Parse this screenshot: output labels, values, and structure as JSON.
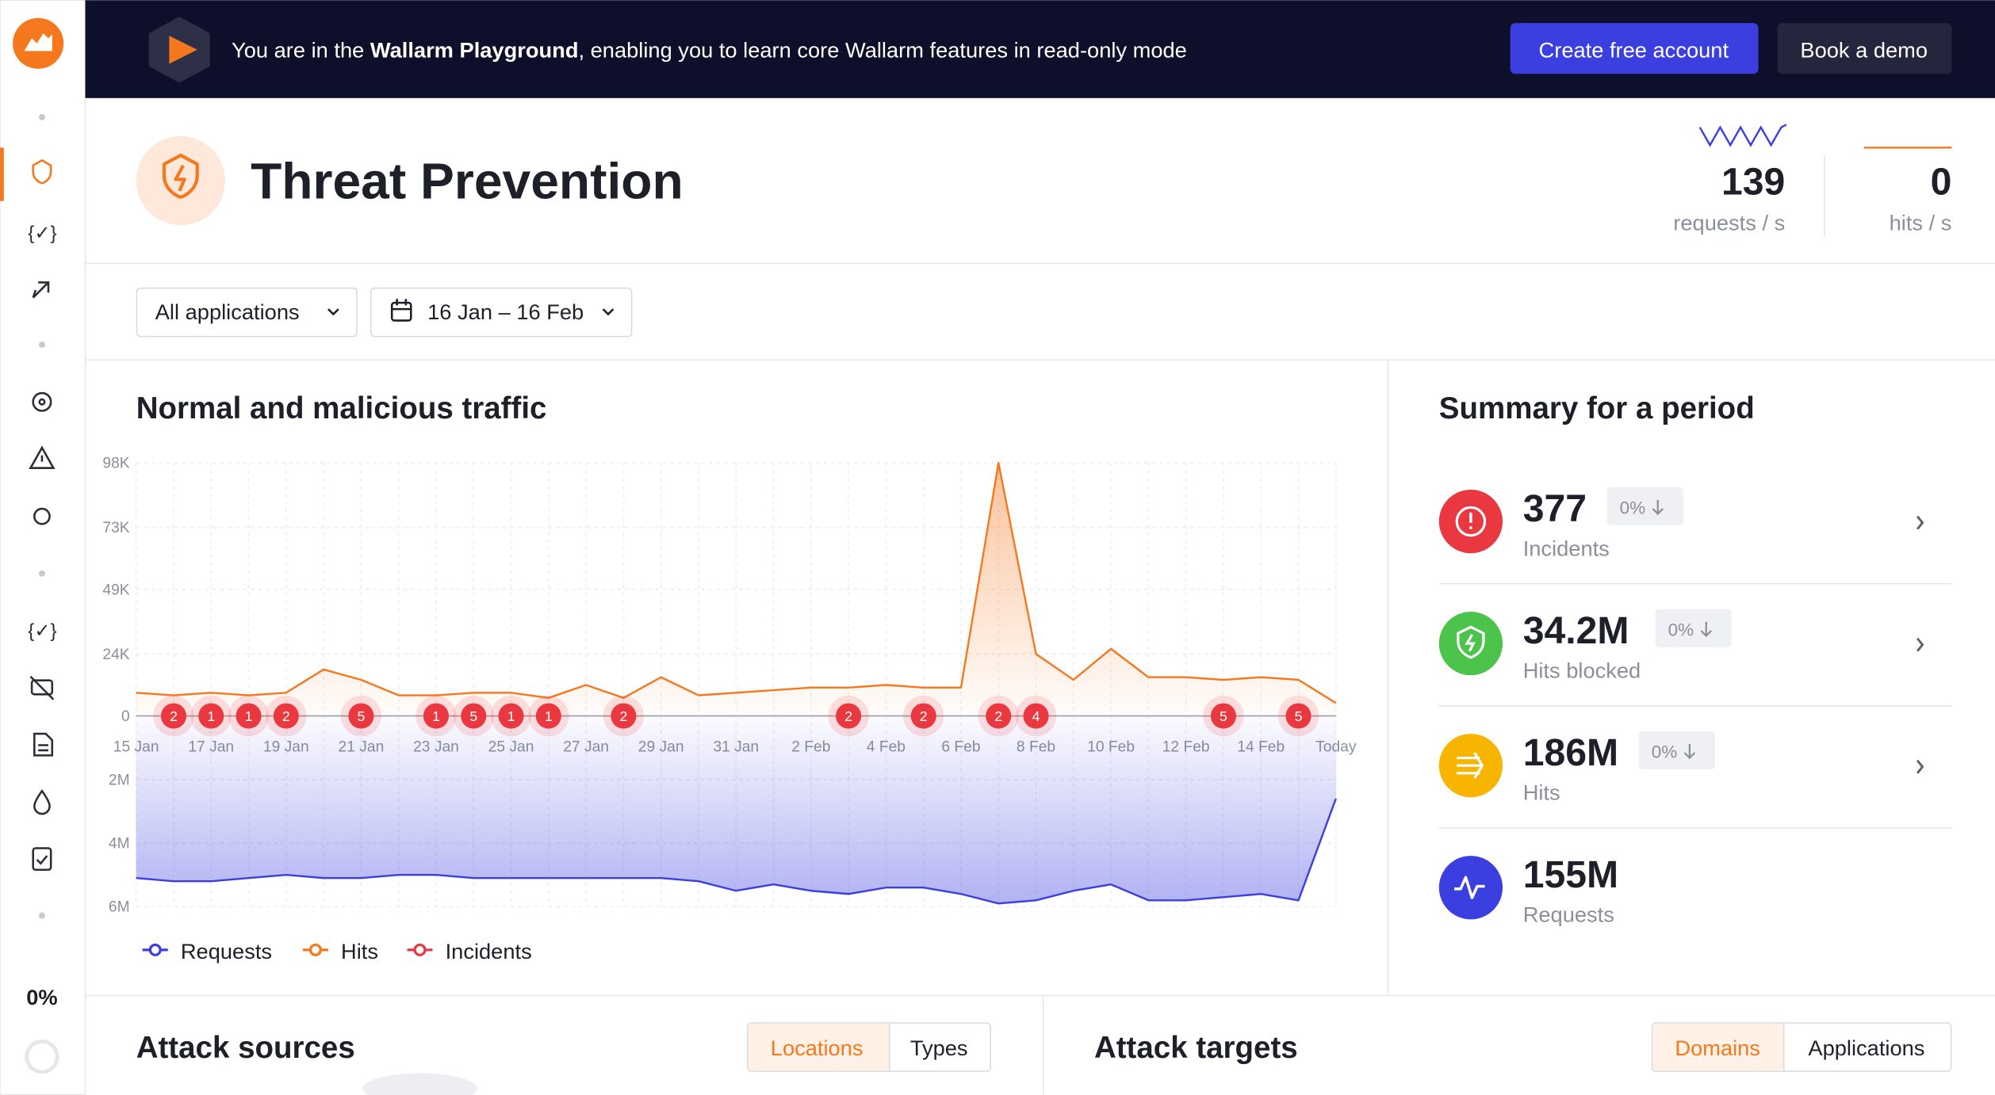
{
  "banner": {
    "text_before": "You are in the ",
    "text_bold": "Wallarm Playground",
    "text_after": ", enabling you to learn core Wallarm features in read-only mode",
    "primary_button": "Create free account",
    "secondary_button": "Book a demo"
  },
  "sidebar": {
    "progress": "0%"
  },
  "header": {
    "title": "Threat Prevention",
    "requests_rate": "139",
    "requests_label": "requests / s",
    "hits_rate": "0",
    "hits_label": "hits / s"
  },
  "filters": {
    "application": "All applications",
    "date_range": "16 Jan – 16 Feb"
  },
  "traffic_chart": {
    "type": "line",
    "title": "Normal and malicious traffic",
    "categories": [
      "15 Jan",
      null,
      "17 Jan",
      null,
      "19 Jan",
      null,
      "21 Jan",
      null,
      "23 Jan",
      null,
      "25 Jan",
      null,
      "27 Jan",
      null,
      "29 Jan",
      null,
      "31 Jan",
      null,
      "2 Feb",
      null,
      "4 Feb",
      null,
      "6 Feb",
      null,
      "8 Feb",
      null,
      "10 Feb",
      null,
      "12 Feb",
      null,
      "14 Feb",
      null,
      "Today"
    ],
    "ylim": [
      0,
      98000
    ],
    "yticks": [
      0,
      {
        "value": 24000,
        "label": "24K"
      },
      {
        "value": 49000,
        "label": "49K"
      },
      {
        "value": 73000,
        "label": "73K"
      },
      {
        "value": 98000,
        "label": "98K"
      }
    ],
    "y2lim": [
      0,
      6000000
    ],
    "y2ticks": [
      {
        "value": 2000000,
        "label": "2M"
      },
      {
        "value": 4000000,
        "label": "4M"
      },
      {
        "value": 6000000,
        "label": "6M"
      }
    ],
    "grid": true,
    "series": [
      {
        "name": "Requests",
        "color": "#3b3fe0",
        "axis": "y2",
        "values": [
          5100000,
          5200000,
          5200000,
          5100000,
          5000000,
          5100000,
          5100000,
          5000000,
          5000000,
          5100000,
          5100000,
          5100000,
          5100000,
          5100000,
          5100000,
          5200000,
          5500000,
          5300000,
          5500000,
          5600000,
          5400000,
          5400000,
          5600000,
          5900000,
          5800000,
          5500000,
          5300000,
          5800000,
          5800000,
          5700000,
          5600000,
          5800000,
          2600000
        ]
      },
      {
        "name": "Hits",
        "color": "#f5781e",
        "values": [
          9000,
          8000,
          9000,
          8000,
          9000,
          18000,
          14000,
          8000,
          8000,
          9000,
          9000,
          7000,
          12000,
          7000,
          15000,
          8000,
          9000,
          10000,
          11000,
          11000,
          12000,
          11000,
          11000,
          98000,
          24000,
          14000,
          26000,
          15000,
          15000,
          14000,
          15000,
          14000,
          5000
        ]
      },
      {
        "name": "Incidents",
        "color": "#e9383f",
        "values": [
          null,
          2,
          1,
          1,
          2,
          null,
          5,
          null,
          1,
          5,
          1,
          1,
          null,
          2,
          null,
          null,
          null,
          null,
          null,
          2,
          null,
          2,
          null,
          2,
          4,
          null,
          null,
          null,
          null,
          5,
          null,
          5,
          null
        ]
      }
    ]
  },
  "summary": {
    "title": "Summary for a period",
    "items": [
      {
        "value": "377",
        "change": "0%",
        "label": "Incidents"
      },
      {
        "value": "34.2M",
        "change": "0%",
        "label": "Hits blocked"
      },
      {
        "value": "186M",
        "change": "0%",
        "label": "Hits"
      },
      {
        "value": "155M",
        "label": "Requests"
      }
    ]
  },
  "attack_sources": {
    "title": "Attack sources",
    "tabs": [
      "Locations",
      "Types"
    ]
  },
  "attack_targets": {
    "title": "Attack targets",
    "tabs": [
      "Domains",
      "Applications"
    ]
  }
}
